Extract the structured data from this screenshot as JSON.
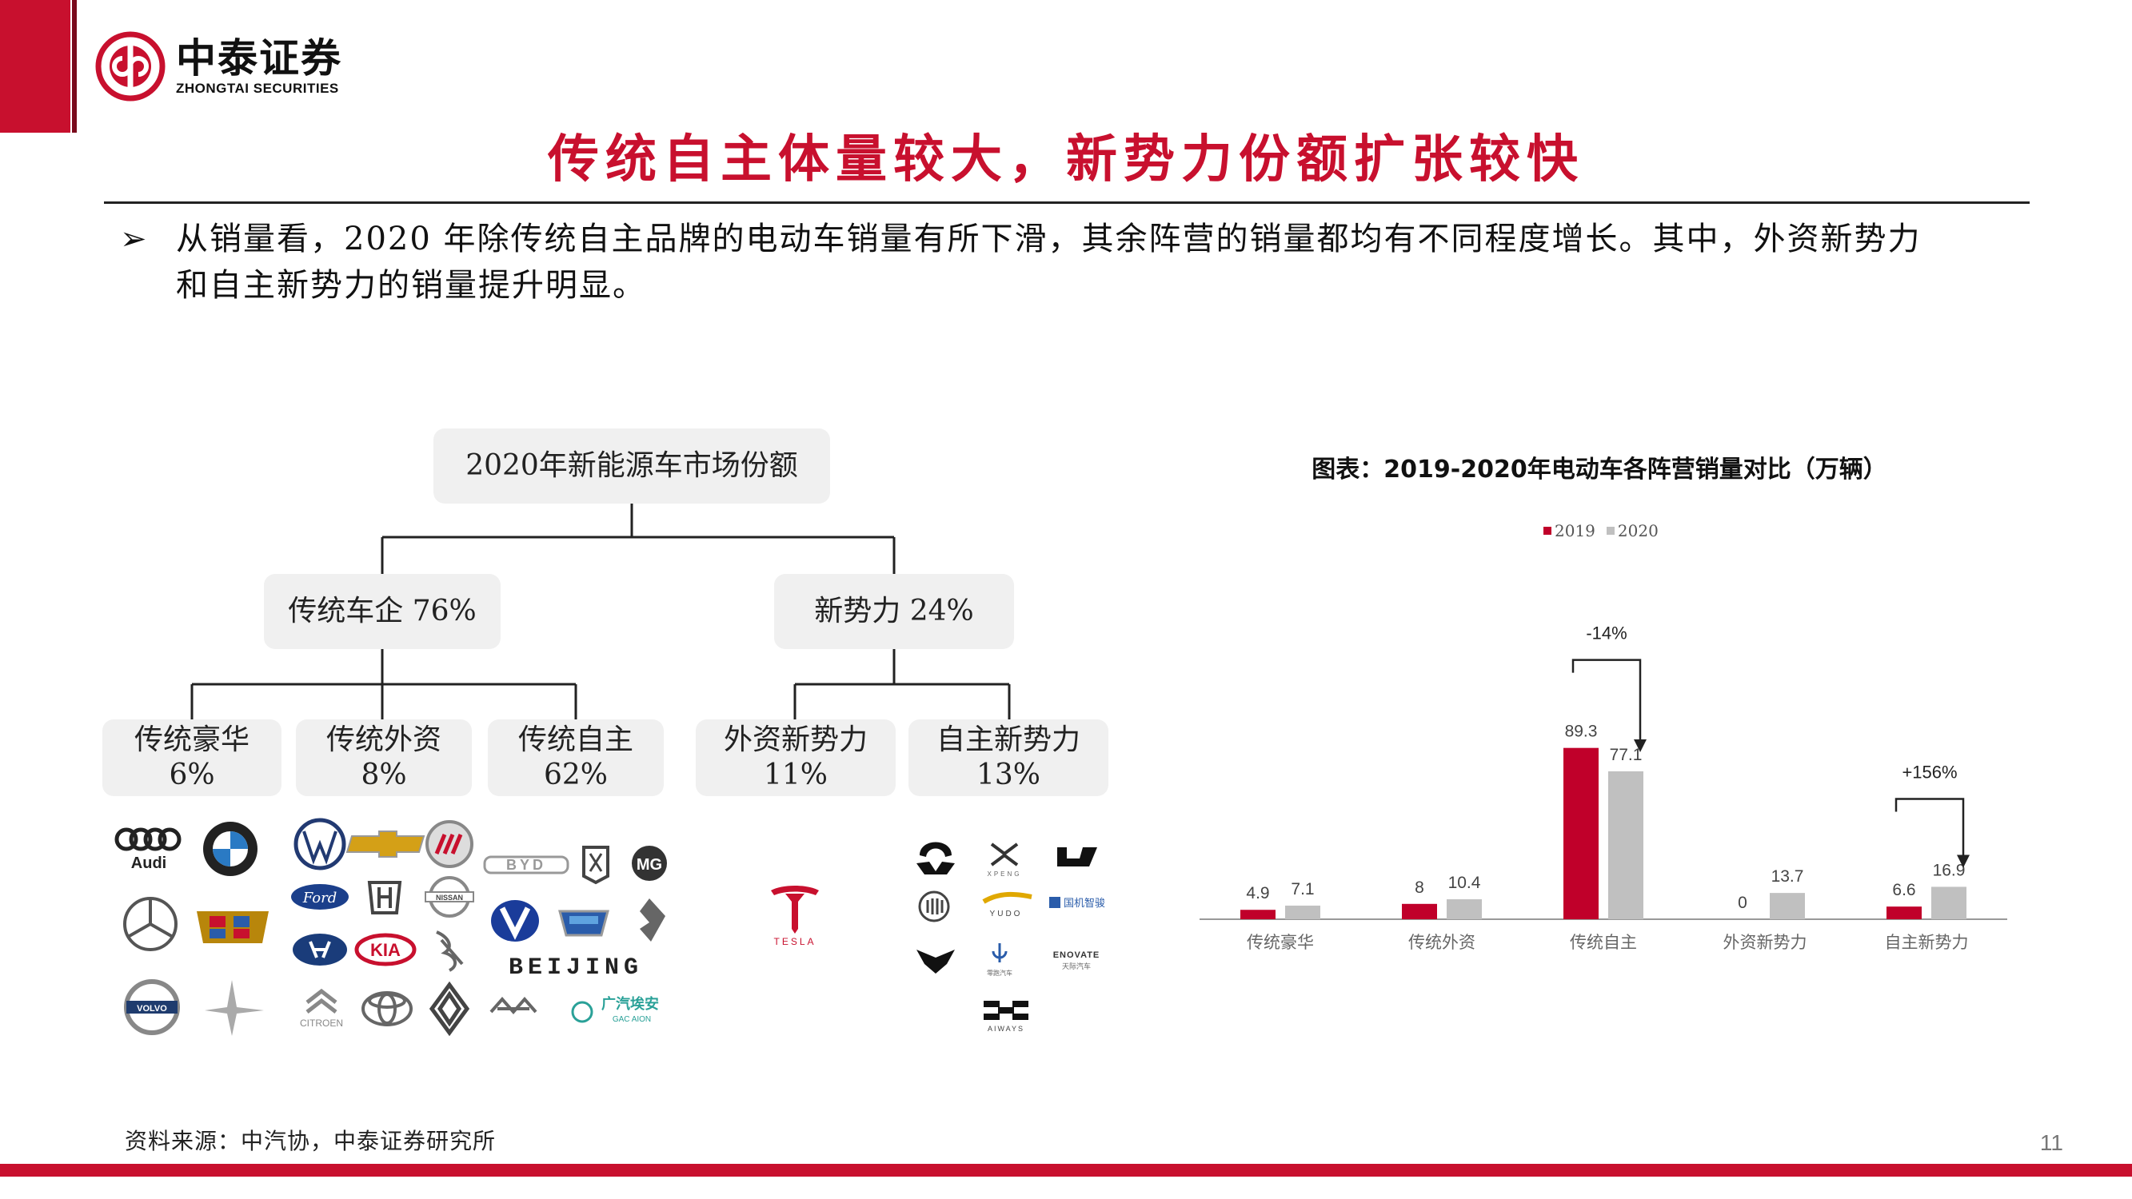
{
  "header": {
    "company_cn": "中泰证券",
    "company_en": "ZHONGTAI SECURITIES",
    "title": "传统自主体量较大，新势力份额扩张较快"
  },
  "bullet": {
    "text_line1": "从销量看，2020 年除传统自主品牌的电动车销量有所下滑，其余阵营的销量都均有不同程度增长。其中，外资新势力",
    "text_line2": "和自主新势力的销量提升明显。"
  },
  "tree": {
    "root": "2020年新能源车市场份额",
    "traditional": "传统车企 76%",
    "new_forces": "新势力 24%",
    "leaves": [
      {
        "name": "传统豪华",
        "share": "6%"
      },
      {
        "name": "传统外资",
        "share": "8%"
      },
      {
        "name": "传统自主",
        "share": "62%"
      },
      {
        "name": "外资新势力",
        "share": "11%"
      },
      {
        "name": "自主新势力",
        "share": "13%"
      }
    ]
  },
  "brands": {
    "audi": "Audi",
    "ford": "Ford",
    "kia": "KIA",
    "nissan": "NISSAN",
    "volvo": "VOLVO",
    "byd": "BYD",
    "beijing": "BEIJING",
    "gac": "广汽埃安",
    "gac_en": "GAC AION",
    "tesla": "TESLA",
    "xpeng": "XPENG",
    "yudo": "YUDO",
    "guoji": "国机智骏",
    "leapmotor": "零跑汽车",
    "enovate": "ENOVATE",
    "enovate_cn": "天际汽车",
    "aiways": "AIWAYS",
    "citroen": "CITROEN"
  },
  "chart_data": {
    "type": "bar",
    "title": "图表：2019-2020年电动车各阵营销量对比（万辆）",
    "categories": [
      "传统豪华",
      "传统外资",
      "传统自主",
      "外资新势力",
      "自主新势力"
    ],
    "series": [
      {
        "name": "2019",
        "values": [
          4.9,
          8,
          89.3,
          0,
          6.6
        ],
        "labels": [
          "4.9",
          "8",
          "89.3",
          "0",
          "6.6"
        ],
        "color": "#c0002a"
      },
      {
        "name": "2020",
        "values": [
          7.1,
          10.4,
          77.1,
          13.7,
          16.9
        ],
        "labels": [
          "7.1",
          "10.4",
          "77.1",
          "13.7",
          "16.9"
        ],
        "color": "#c0c0c0"
      }
    ],
    "ylim": [
      0,
      100
    ],
    "annotations": [
      {
        "category": "传统自主",
        "text": "-14%"
      },
      {
        "category": "自主新势力",
        "text": "+156%"
      }
    ],
    "legend": "top-center",
    "grid": false
  },
  "footer": {
    "source": "资料来源：中汽协，中泰证券研究所",
    "page": "11"
  },
  "colors": {
    "brand_red": "#c8102e",
    "bar_2019": "#c0002a",
    "bar_2020": "#c0c0c0"
  }
}
